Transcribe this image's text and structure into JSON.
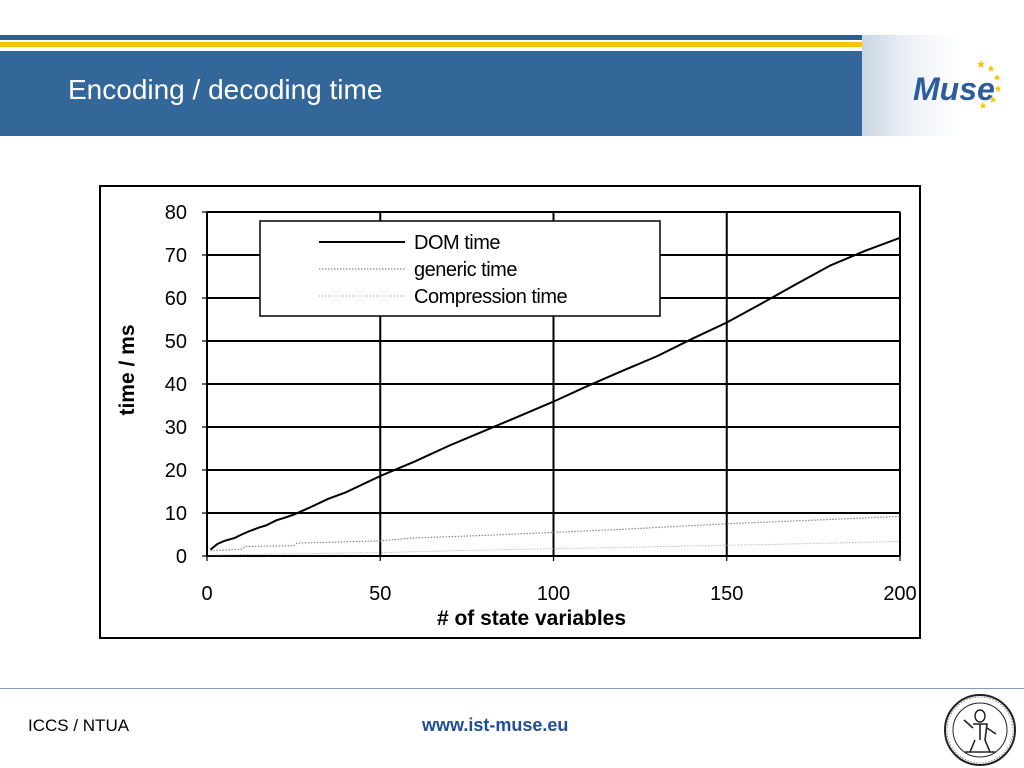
{
  "slide": {
    "title": "Encoding / decoding time",
    "logo_text": "Muse",
    "footer_left": "ICCS / NTUA",
    "footer_center": "www.ist-muse.eu"
  },
  "colors": {
    "header_blue": "#336699",
    "stripe_gold": "#f2c500",
    "link_blue": "#1f4e96"
  },
  "chart_data": {
    "type": "line",
    "xlabel": "# of state variables",
    "ylabel": "time / ms",
    "xlim": [
      0,
      200
    ],
    "ylim": [
      0,
      80
    ],
    "xticks": [
      "0",
      "50",
      "100",
      "150",
      "200"
    ],
    "yticks": [
      "0",
      "10",
      "20",
      "30",
      "40",
      "50",
      "60",
      "70",
      "80"
    ],
    "grid": true,
    "legend_position": "top-left",
    "series": [
      {
        "name": "DOM time",
        "style": "solid-black",
        "x": [
          1,
          3,
          5,
          8,
          10,
          12,
          15,
          17,
          20,
          22,
          25,
          30,
          35,
          40,
          50,
          60,
          70,
          80,
          90,
          100,
          110,
          120,
          130,
          140,
          150,
          160,
          170,
          180,
          190,
          200
        ],
        "y": [
          1.5,
          2.8,
          3.5,
          4.2,
          5.0,
          5.7,
          6.6,
          7.1,
          8.3,
          8.8,
          9.6,
          11.4,
          13.3,
          14.8,
          18.6,
          22.0,
          25.7,
          29.1,
          32.5,
          35.9,
          39.6,
          43.1,
          46.5,
          50.5,
          54.3,
          58.7,
          63.2,
          67.6,
          71.0,
          74.0
        ]
      },
      {
        "name": "generic time",
        "style": "dotted-gray",
        "x": [
          1,
          10,
          11,
          25,
          26,
          50,
          60,
          80,
          100,
          120,
          150,
          180,
          200
        ],
        "y": [
          1.2,
          1.6,
          2.2,
          2.4,
          3.0,
          3.5,
          4.2,
          4.8,
          5.5,
          6.2,
          7.5,
          8.5,
          9.2
        ]
      },
      {
        "name": "Compression time",
        "style": "dotted-lightgray",
        "x": [
          1,
          25,
          50,
          75,
          100,
          125,
          150,
          175,
          200
        ],
        "y": [
          0.2,
          0.5,
          0.8,
          1.3,
          1.7,
          2.1,
          2.5,
          2.9,
          3.4
        ]
      }
    ]
  }
}
